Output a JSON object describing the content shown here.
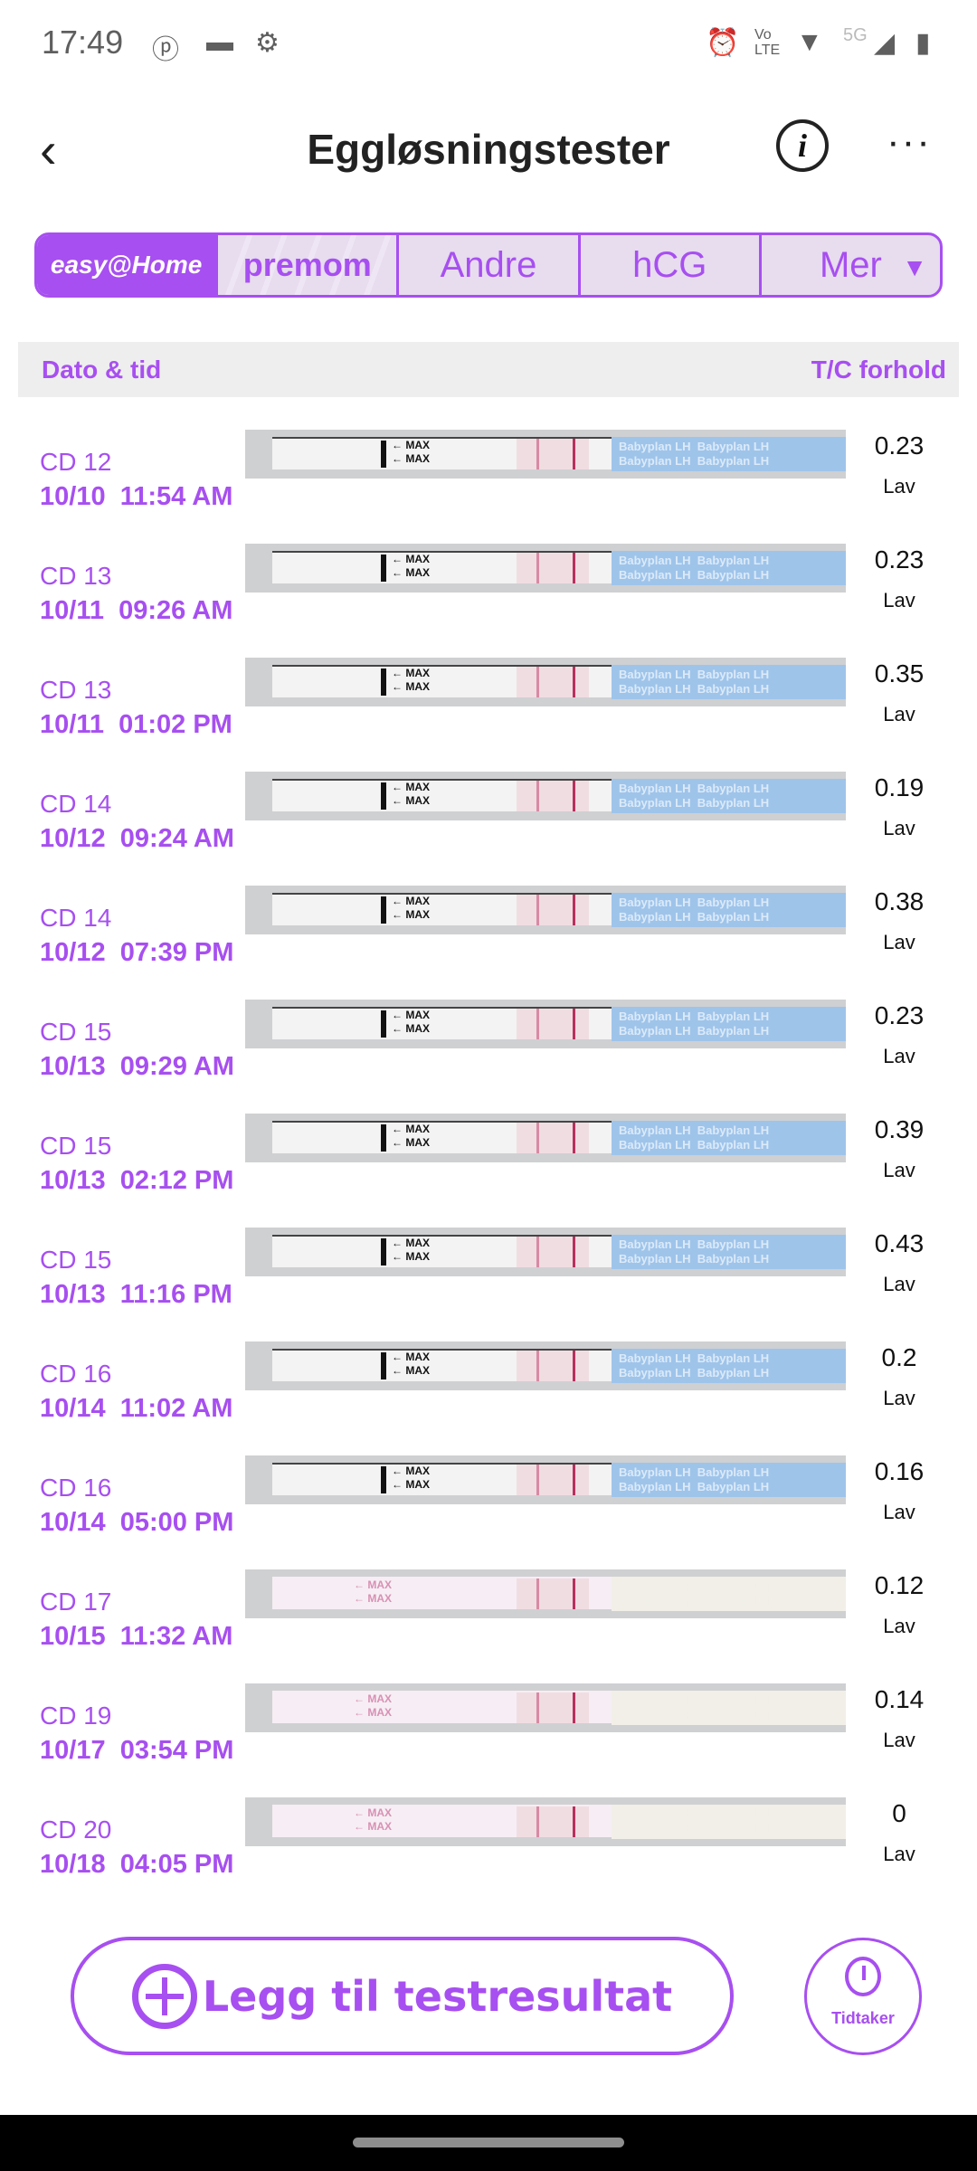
{
  "status": {
    "time": "17:49",
    "network": "5G",
    "volte": "Vo LTE"
  },
  "header": {
    "title": "Eggløsningstester",
    "back": "‹",
    "info": "i",
    "more": "···"
  },
  "tabs": [
    {
      "label": "easy@Home"
    },
    {
      "label": "premom"
    },
    {
      "label": "Andre"
    },
    {
      "label": "hCG"
    },
    {
      "label": "Mer"
    }
  ],
  "table": {
    "col_date": "Dato & tid",
    "col_ratio": "T/C forhold"
  },
  "rows": [
    {
      "cd": "CD 12",
      "date": "10/10",
      "time": "11:54 AM",
      "ratio": "0.23",
      "level": "Lav"
    },
    {
      "cd": "CD 13",
      "date": "10/11",
      "time": "09:26 AM",
      "ratio": "0.23",
      "level": "Lav"
    },
    {
      "cd": "CD 13",
      "date": "10/11",
      "time": "01:02 PM",
      "ratio": "0.35",
      "level": "Lav"
    },
    {
      "cd": "CD 14",
      "date": "10/12",
      "time": "09:24 AM",
      "ratio": "0.19",
      "level": "Lav"
    },
    {
      "cd": "CD 14",
      "date": "10/12",
      "time": "07:39 PM",
      "ratio": "0.38",
      "level": "Lav"
    },
    {
      "cd": "CD 15",
      "date": "10/13",
      "time": "09:29 AM",
      "ratio": "0.23",
      "level": "Lav"
    },
    {
      "cd": "CD 15",
      "date": "10/13",
      "time": "02:12 PM",
      "ratio": "0.39",
      "level": "Lav"
    },
    {
      "cd": "CD 15",
      "date": "10/13",
      "time": "11:16 PM",
      "ratio": "0.43",
      "level": "Lav"
    },
    {
      "cd": "CD 16",
      "date": "10/14",
      "time": "11:02 AM",
      "ratio": "0.2",
      "level": "Lav"
    },
    {
      "cd": "CD 16",
      "date": "10/14",
      "time": "05:00 PM",
      "ratio": "0.16",
      "level": "Lav"
    },
    {
      "cd": "CD 17",
      "date": "10/15",
      "time": "11:32 AM",
      "ratio": "0.12",
      "level": "Lav"
    },
    {
      "cd": "CD 19",
      "date": "10/17",
      "time": "03:54 PM",
      "ratio": "0.14",
      "level": "Lav"
    },
    {
      "cd": "CD 20",
      "date": "10/18",
      "time": "04:05 PM",
      "ratio": "0",
      "level": "Lav"
    }
  ],
  "strip_text": {
    "max": "← MAX",
    "brand": "Babyplan LH"
  },
  "actions": {
    "add": "Legg til testresultat",
    "timer": "Tidtaker"
  },
  "colors": {
    "accent": "#a74ff0",
    "tab_bg": "#e8dcef"
  }
}
